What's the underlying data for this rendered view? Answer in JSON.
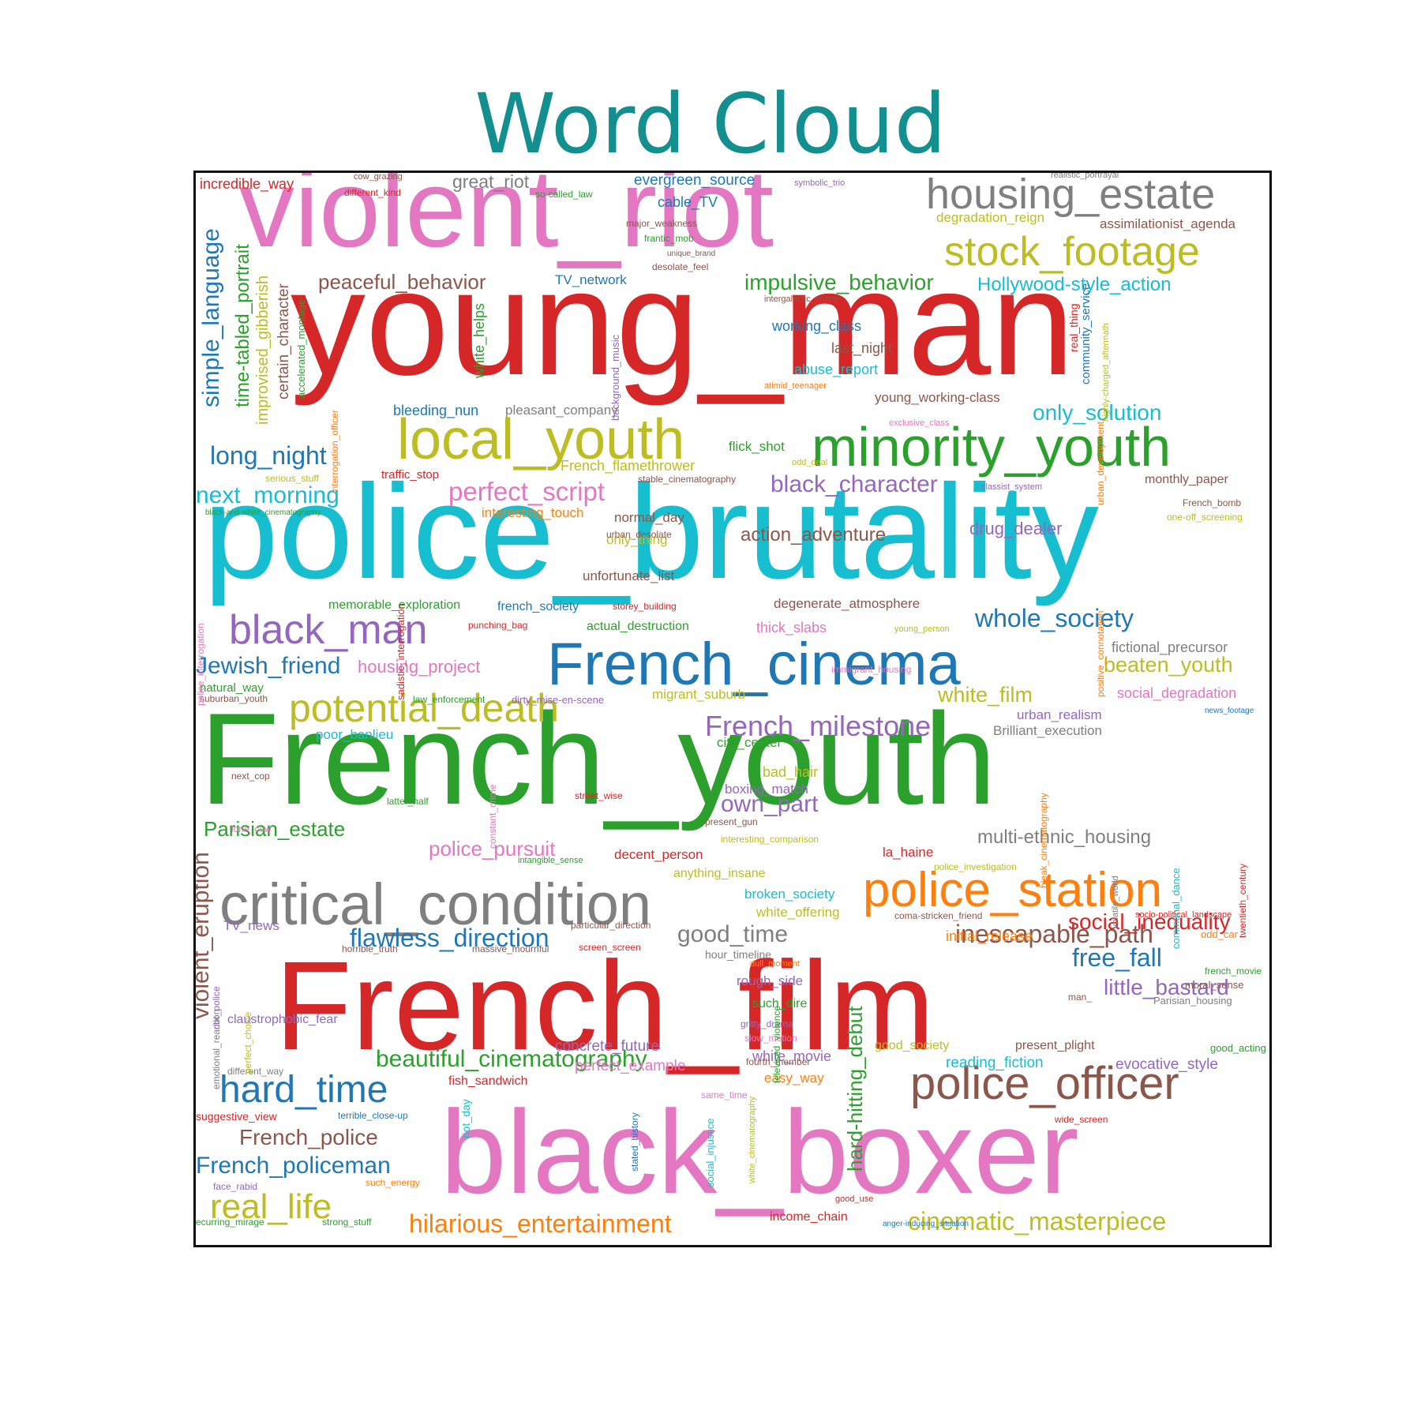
{
  "title": "Word Cloud",
  "colors": {
    "title": "#148f8f",
    "red": "#d62728",
    "pink": "#e377c2",
    "gray": "#7f7f7f",
    "olive": "#bcbd22",
    "brown": "#8c564b",
    "cyan": "#17becf",
    "green": "#2ca02c",
    "blue": "#1f77b4",
    "purple": "#9467bd",
    "orange": "#ff7f0e"
  },
  "words": [
    {
      "text": "violent_riot",
      "color": "pink"
    },
    {
      "text": "young_man",
      "color": "red"
    },
    {
      "text": "police_brutality",
      "color": "cyan"
    },
    {
      "text": "French_youth",
      "color": "green"
    },
    {
      "text": "French_film",
      "color": "red"
    },
    {
      "text": "black_boxer",
      "color": "pink"
    },
    {
      "text": "French_cinema",
      "color": "blue"
    },
    {
      "text": "critical_condition",
      "color": "gray"
    },
    {
      "text": "minority_youth",
      "color": "green"
    },
    {
      "text": "local_youth",
      "color": "olive"
    },
    {
      "text": "housing_estate",
      "color": "gray"
    },
    {
      "text": "stock_footage",
      "color": "olive"
    },
    {
      "text": "police_station",
      "color": "orange"
    },
    {
      "text": "police_officer",
      "color": "brown"
    },
    {
      "text": "black_man",
      "color": "purple"
    },
    {
      "text": "potential_death",
      "color": "olive"
    },
    {
      "text": "hard_time",
      "color": "blue"
    },
    {
      "text": "real_life",
      "color": "olive"
    },
    {
      "text": "cinematic_masterpiece",
      "color": "olive"
    },
    {
      "text": "hilarious_entertainment",
      "color": "orange"
    },
    {
      "text": "beautiful_cinematography",
      "color": "green"
    },
    {
      "text": "French_milestone",
      "color": "purple"
    },
    {
      "text": "flawless_direction",
      "color": "blue"
    },
    {
      "text": "inescapable_path",
      "color": "brown"
    },
    {
      "text": "whole_society",
      "color": "blue"
    },
    {
      "text": "perfect_script",
      "color": "pink"
    },
    {
      "text": "black_character",
      "color": "purple"
    },
    {
      "text": "impulsive_behavior",
      "color": "green"
    },
    {
      "text": "peaceful_behavior",
      "color": "brown"
    },
    {
      "text": "Hollywood-style_action",
      "color": "cyan"
    },
    {
      "text": "long_night",
      "color": "blue"
    },
    {
      "text": "next_morning",
      "color": "cyan"
    },
    {
      "text": "Jewish_friend",
      "color": "blue"
    },
    {
      "text": "simple_language",
      "color": "blue"
    },
    {
      "text": "time-tabled_portrait",
      "color": "green"
    },
    {
      "text": "improvised_gibberish",
      "color": "olive"
    },
    {
      "text": "certain_character",
      "color": "brown"
    },
    {
      "text": "accelerated_montage",
      "color": "green"
    },
    {
      "text": "only_solution",
      "color": "cyan"
    },
    {
      "text": "social_inequality",
      "color": "red"
    },
    {
      "text": "little_bastard",
      "color": "purple"
    },
    {
      "text": "free_fall",
      "color": "blue"
    },
    {
      "text": "good_time",
      "color": "gray"
    },
    {
      "text": "French_police",
      "color": "brown"
    },
    {
      "text": "French_policeman",
      "color": "blue"
    },
    {
      "text": "Parisian_estate",
      "color": "green"
    },
    {
      "text": "police_pursuit",
      "color": "pink"
    },
    {
      "text": "action_adventure",
      "color": "brown"
    },
    {
      "text": "drug_dealer",
      "color": "purple"
    },
    {
      "text": "multi-ethnic_housing",
      "color": "gray"
    },
    {
      "text": "beaten_youth",
      "color": "olive"
    },
    {
      "text": "white_film",
      "color": "olive"
    },
    {
      "text": "own_part",
      "color": "purple"
    },
    {
      "text": "violent_eruption",
      "color": "brown"
    },
    {
      "text": "hard-hitting_debut",
      "color": "green"
    },
    {
      "text": "housing_project",
      "color": "pink"
    },
    {
      "text": "fictional_precursor",
      "color": "gray"
    },
    {
      "text": "social_degradation",
      "color": "pink"
    },
    {
      "text": "urban_realism",
      "color": "purple"
    },
    {
      "text": "Brilliant_execution",
      "color": "gray"
    },
    {
      "text": "evocative_style",
      "color": "purple"
    },
    {
      "text": "reading_fiction",
      "color": "cyan"
    },
    {
      "text": "concrete_future",
      "color": "purple"
    },
    {
      "text": "perfect_example",
      "color": "pink"
    },
    {
      "text": "white_movie",
      "color": "purple"
    },
    {
      "text": "initial_release",
      "color": "orange"
    },
    {
      "text": "great_riot",
      "color": "gray"
    },
    {
      "text": "evergreen_source",
      "color": "blue"
    },
    {
      "text": "incredible_way",
      "color": "red"
    },
    {
      "text": "cable_TV",
      "color": "blue"
    },
    {
      "text": "degradation_reign",
      "color": "olive"
    },
    {
      "text": "assimilationist_agenda",
      "color": "brown"
    },
    {
      "text": "TV_network",
      "color": "blue"
    },
    {
      "text": "working_class",
      "color": "blue"
    },
    {
      "text": "last_night",
      "color": "brown"
    },
    {
      "text": "abuse_report",
      "color": "cyan"
    },
    {
      "text": "young_working-class",
      "color": "brown"
    },
    {
      "text": "flick_shot",
      "color": "green"
    },
    {
      "text": "monthly_paper",
      "color": "brown"
    },
    {
      "text": "bleeding_nun",
      "color": "blue"
    },
    {
      "text": "pleasant_company",
      "color": "gray"
    },
    {
      "text": "French_flamethrower",
      "color": "olive"
    },
    {
      "text": "traffic_stop",
      "color": "red"
    },
    {
      "text": "interesting_touch",
      "color": "orange"
    },
    {
      "text": "normal_day",
      "color": "brown"
    },
    {
      "text": "only_thing",
      "color": "olive"
    },
    {
      "text": "unfortunate_list",
      "color": "brown"
    },
    {
      "text": "degenerate_atmosphere",
      "color": "brown"
    },
    {
      "text": "memorable_exploration",
      "color": "green"
    },
    {
      "text": "french_society",
      "color": "blue"
    },
    {
      "text": "actual_destruction",
      "color": "green"
    },
    {
      "text": "thick_slabs",
      "color": "pink"
    },
    {
      "text": "migrant_suburb",
      "color": "olive"
    },
    {
      "text": "natural_way",
      "color": "green"
    },
    {
      "text": "poor_banlieu",
      "color": "cyan"
    },
    {
      "text": "city_center",
      "color": "green"
    },
    {
      "text": "bad_hair",
      "color": "olive"
    },
    {
      "text": "boxing_match",
      "color": "purple"
    },
    {
      "text": "la_haine",
      "color": "red"
    },
    {
      "text": "decent_person",
      "color": "red"
    },
    {
      "text": "anything_insane",
      "color": "olive"
    },
    {
      "text": "broken_society",
      "color": "cyan"
    },
    {
      "text": "white_offering",
      "color": "olive"
    },
    {
      "text": "TV_news",
      "color": "purple"
    },
    {
      "text": "rough_side",
      "color": "purple"
    },
    {
      "text": "such_dire",
      "color": "green"
    },
    {
      "text": "claustrophobic_fear",
      "color": "purple"
    },
    {
      "text": "fish_sandwich",
      "color": "red"
    },
    {
      "text": "easy_way",
      "color": "orange"
    },
    {
      "text": "good_society",
      "color": "olive"
    },
    {
      "text": "present_plight",
      "color": "brown"
    },
    {
      "text": "good_acting",
      "color": "green"
    },
    {
      "text": "income_chain",
      "color": "red"
    },
    {
      "text": "hour_timeline",
      "color": "gray"
    },
    {
      "text": "street_wise",
      "color": "red"
    },
    {
      "text": "latter_half",
      "color": "green"
    },
    {
      "text": "next_cop",
      "color": "brown"
    },
    {
      "text": "lone_cow",
      "color": "pink"
    },
    {
      "text": "storey_building",
      "color": "red"
    },
    {
      "text": "punching_bag",
      "color": "red"
    },
    {
      "text": "young_person",
      "color": "olive"
    },
    {
      "text": "French_bomb",
      "color": "brown"
    },
    {
      "text": "one-off_screening",
      "color": "olive"
    },
    {
      "text": "real_thing",
      "color": "red"
    },
    {
      "text": "community_service",
      "color": "blue"
    },
    {
      "text": "cow_grazing",
      "color": "brown"
    },
    {
      "text": "different_kind",
      "color": "red"
    },
    {
      "text": "so-called_law",
      "color": "green"
    },
    {
      "text": "symbolic_trio",
      "color": "purple"
    },
    {
      "text": "realistic_portrayal",
      "color": "gray"
    },
    {
      "text": "major_weakness",
      "color": "brown"
    },
    {
      "text": "frantic_mob",
      "color": "green"
    },
    {
      "text": "unique_brand",
      "color": "brown"
    },
    {
      "text": "desolate_feel",
      "color": "brown"
    },
    {
      "text": "intergalactic_space",
      "color": "brown"
    },
    {
      "text": "atimid_teenager",
      "color": "orange"
    },
    {
      "text": "exclusive_class",
      "color": "pink"
    },
    {
      "text": "classist_system",
      "color": "purple"
    },
    {
      "text": "stable_cinematography",
      "color": "brown"
    },
    {
      "text": "odd_deal",
      "color": "olive"
    },
    {
      "text": "serious_stuff",
      "color": "olive"
    },
    {
      "text": "black-and-white_cinematography",
      "color": "green"
    },
    {
      "text": "urban_desolate",
      "color": "brown"
    },
    {
      "text": "immigrant_housing",
      "color": "pink"
    },
    {
      "text": "law_enforcement",
      "color": "green"
    },
    {
      "text": "dirty_mise-en-scene",
      "color": "purple"
    },
    {
      "text": "suburban_youth",
      "color": "brown"
    },
    {
      "text": "present_gun",
      "color": "brown"
    },
    {
      "text": "interesting_comparison",
      "color": "olive"
    },
    {
      "text": "intangible_sense",
      "color": "green"
    },
    {
      "text": "police_investigation",
      "color": "olive"
    },
    {
      "text": "coma-stricken_friend",
      "color": "brown"
    },
    {
      "text": "socio-political_landscape",
      "color": "red"
    },
    {
      "text": "particular_direction",
      "color": "brown"
    },
    {
      "text": "odd_car",
      "color": "orange"
    },
    {
      "text": "horrible_truth",
      "color": "brown"
    },
    {
      "text": "massive_mournful",
      "color": "brown"
    },
    {
      "text": "screen_screen",
      "color": "red"
    },
    {
      "text": "dull_moment",
      "color": "orange"
    },
    {
      "text": "french_movie",
      "color": "green"
    },
    {
      "text": "moral_sense",
      "color": "brown"
    },
    {
      "text": "Parisian_housing",
      "color": "gray"
    },
    {
      "text": "man_",
      "color": "brown"
    },
    {
      "text": "gritty_drama",
      "color": "purple"
    },
    {
      "text": "slow_motion",
      "color": "pink"
    },
    {
      "text": "fourth_member",
      "color": "brown"
    },
    {
      "text": "different_way",
      "color": "gray"
    },
    {
      "text": "same_time",
      "color": "pink"
    },
    {
      "text": "suggestive_view",
      "color": "red"
    },
    {
      "text": "terrible_close-up",
      "color": "blue"
    },
    {
      "text": "wide_screen",
      "color": "red"
    },
    {
      "text": "face_rabid",
      "color": "purple"
    },
    {
      "text": "such_energy",
      "color": "orange"
    },
    {
      "text": "good_use",
      "color": "red"
    },
    {
      "text": "ecurring_mirage",
      "color": "green"
    },
    {
      "text": "strong_stuff",
      "color": "green"
    },
    {
      "text": "anger-inducing_situation",
      "color": "blue"
    },
    {
      "text": "news_footage",
      "color": "blue"
    },
    {
      "text": "white_helps",
      "color": "green"
    },
    {
      "text": "background_music",
      "color": "purple"
    },
    {
      "text": "interrogation_officer",
      "color": "orange"
    },
    {
      "text": "sadistic_interrogation",
      "color": "red"
    },
    {
      "text": "police_interrogation",
      "color": "pink"
    },
    {
      "text": "positive_connotation",
      "color": "orange"
    },
    {
      "text": "highly-charged_aftermath",
      "color": "olive"
    },
    {
      "text": "urban_development",
      "color": "orange"
    },
    {
      "text": "bleak_cinematography",
      "color": "orange"
    },
    {
      "text": "twentieth_century",
      "color": "red"
    },
    {
      "text": "communal_dance",
      "color": "cyan"
    },
    {
      "text": "volatile_world",
      "color": "gray"
    },
    {
      "text": "public_housing",
      "color": "brown"
    },
    {
      "text": "constant_crime",
      "color": "pink"
    },
    {
      "text": "emotional_reaction",
      "color": "gray"
    },
    {
      "text": "riot_police",
      "color": "purple"
    },
    {
      "text": "perfect_choice",
      "color": "olive"
    },
    {
      "text": "televised_violence",
      "color": "green"
    },
    {
      "text": "riot_day",
      "color": "cyan"
    },
    {
      "text": "stated_history",
      "color": "blue"
    },
    {
      "text": "social_injustice",
      "color": "cyan"
    },
    {
      "text": "white_cinematography",
      "color": "olive"
    }
  ]
}
